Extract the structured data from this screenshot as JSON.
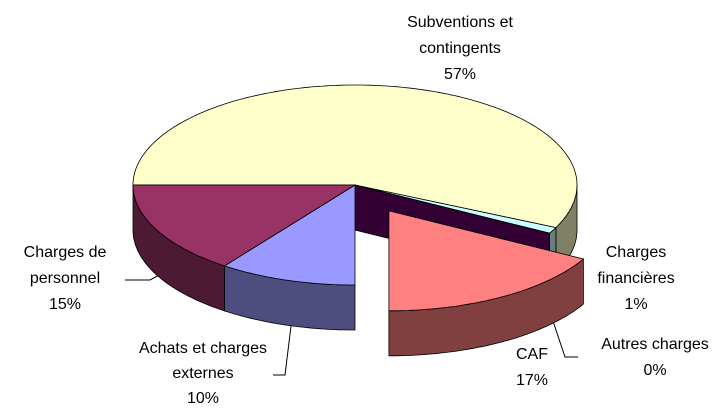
{
  "chart_data": {
    "type": "pie3d",
    "categories": [
      "Subventions et contingents",
      "Charges financières",
      "Autres charges",
      "CAF",
      "Achats et charges externes",
      "Charges de personnel"
    ],
    "values": [
      57,
      1,
      0,
      17,
      10,
      15
    ],
    "value_labels": [
      "57%",
      "1%",
      "0%",
      "17%",
      "10%",
      "15%"
    ],
    "colors": [
      "#ffffcc",
      "#ccffff",
      "#660066",
      "#ff8080",
      "#9999ff",
      "#993366"
    ],
    "explode": [
      0,
      0,
      0,
      0.3,
      0,
      0
    ]
  }
}
